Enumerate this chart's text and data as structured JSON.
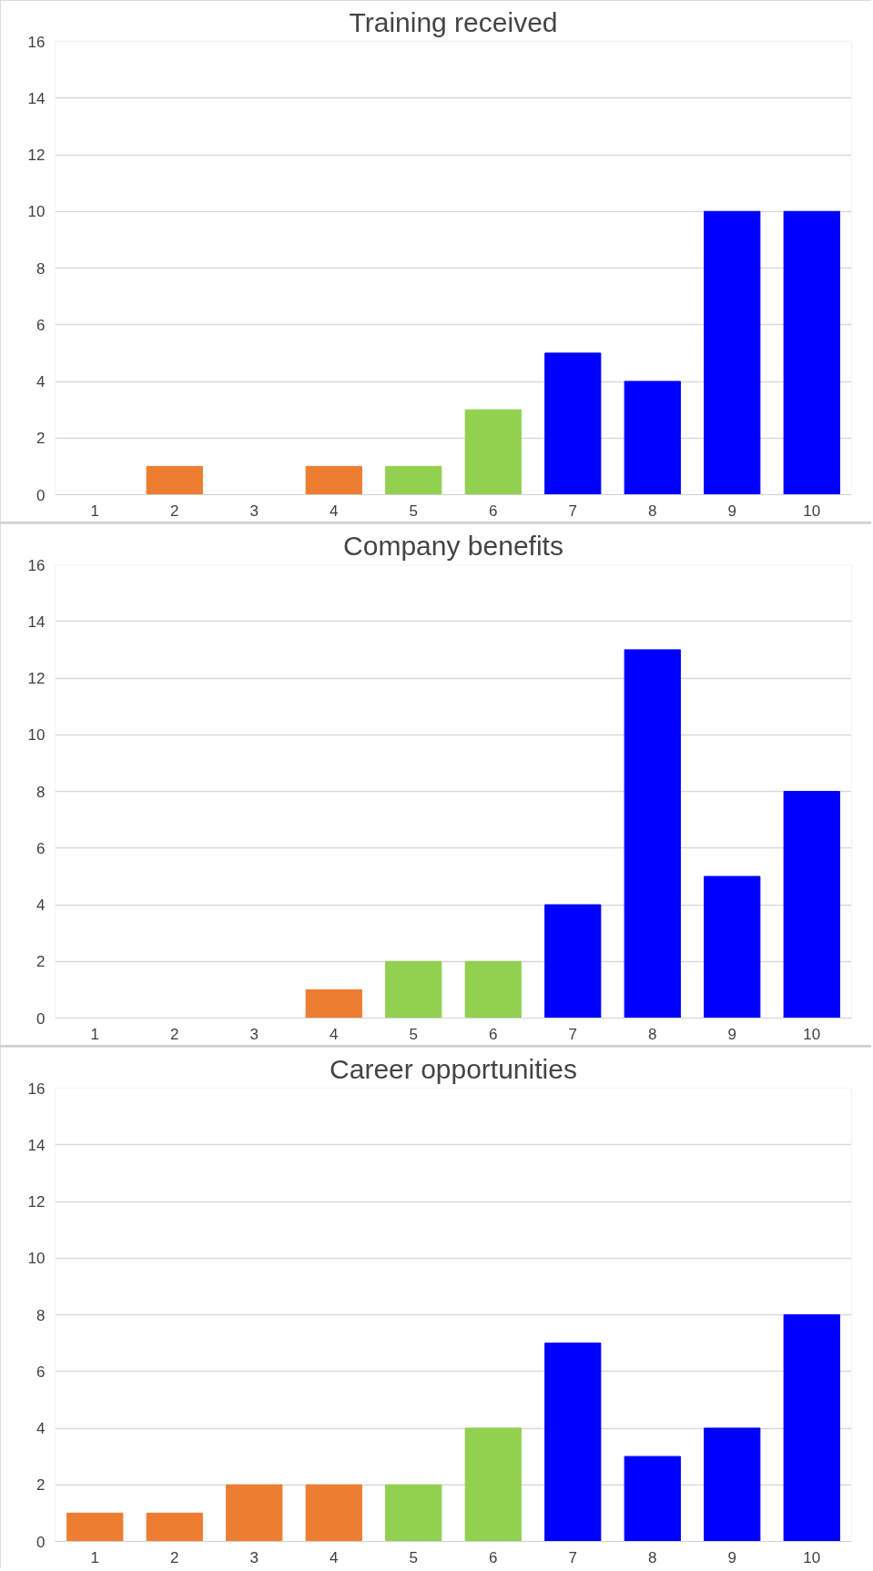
{
  "chart_data": [
    {
      "type": "bar",
      "title": "Training received",
      "categories": [
        "1",
        "2",
        "3",
        "4",
        "5",
        "6",
        "7",
        "8",
        "9",
        "10"
      ],
      "values": [
        0,
        1,
        0,
        1,
        1,
        3,
        5,
        4,
        10,
        10
      ],
      "colors": [
        "#ed7d31",
        "#ed7d31",
        "#ed7d31",
        "#ed7d31",
        "#92d050",
        "#92d050",
        "#0000ff",
        "#0000ff",
        "#0000ff",
        "#0000ff"
      ],
      "ylim": [
        0,
        16
      ],
      "yticks": [
        0,
        2,
        4,
        6,
        8,
        10,
        12,
        14,
        16
      ],
      "grid": "y"
    },
    {
      "type": "bar",
      "title": "Company benefits",
      "categories": [
        "1",
        "2",
        "3",
        "4",
        "5",
        "6",
        "7",
        "8",
        "9",
        "10"
      ],
      "values": [
        0,
        0,
        0,
        1,
        2,
        2,
        4,
        13,
        5,
        8
      ],
      "colors": [
        "#ed7d31",
        "#ed7d31",
        "#ed7d31",
        "#ed7d31",
        "#92d050",
        "#92d050",
        "#0000ff",
        "#0000ff",
        "#0000ff",
        "#0000ff"
      ],
      "ylim": [
        0,
        16
      ],
      "yticks": [
        0,
        2,
        4,
        6,
        8,
        10,
        12,
        14,
        16
      ],
      "grid": "y"
    },
    {
      "type": "bar",
      "title": "Career opportunities",
      "categories": [
        "1",
        "2",
        "3",
        "4",
        "5",
        "6",
        "7",
        "8",
        "9",
        "10"
      ],
      "values": [
        1,
        1,
        2,
        2,
        2,
        4,
        7,
        3,
        4,
        8
      ],
      "colors": [
        "#ed7d31",
        "#ed7d31",
        "#ed7d31",
        "#ed7d31",
        "#92d050",
        "#92d050",
        "#0000ff",
        "#0000ff",
        "#0000ff",
        "#0000ff"
      ],
      "ylim": [
        0,
        16
      ],
      "yticks": [
        0,
        2,
        4,
        6,
        8,
        10,
        12,
        14,
        16
      ],
      "grid": "y"
    }
  ]
}
